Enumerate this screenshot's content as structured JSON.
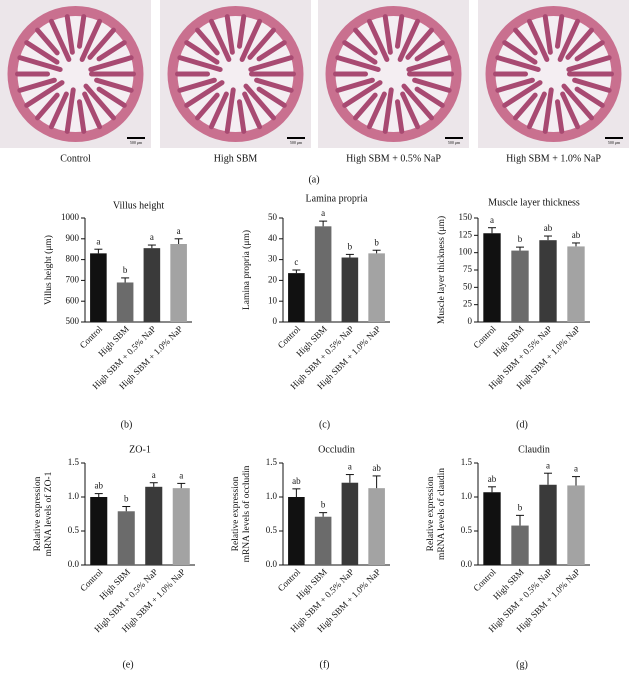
{
  "images": {
    "captions": [
      "Control",
      "High SBM",
      "High SBM + 0.5% NaP",
      "High SBM + 1.0% NaP"
    ],
    "scale_bar": "500 μm",
    "panel_label": "(a)"
  },
  "chart_data": [
    {
      "type": "bar",
      "title": "Villus height",
      "y_label": [
        "Villus height (μm)"
      ],
      "panel_label": "(b)",
      "categories": [
        "Control",
        "High SBM",
        "High SBM + 0.5% NaP",
        "High SBM + 1.0% NaP"
      ],
      "values": [
        830,
        690,
        855,
        875
      ],
      "errors": [
        20,
        22,
        15,
        25
      ],
      "annotations": [
        "a",
        "b",
        "a",
        "a"
      ],
      "colors": [
        "#111111",
        "#6b6b6b",
        "#3a3a3a",
        "#a3a3a3"
      ],
      "ylim": [
        500,
        1000
      ],
      "yticks": [
        500,
        600,
        700,
        800,
        900,
        1000
      ]
    },
    {
      "type": "bar",
      "title": "Lamina propria",
      "y_label": [
        "Lamina propria (μm)"
      ],
      "panel_label": "(c)",
      "categories": [
        "Control",
        "High SBM",
        "High SBM + 0.5% NaP",
        "High SBM + 1.0% NaP"
      ],
      "values": [
        23.5,
        46,
        31,
        33
      ],
      "errors": [
        1.5,
        2.5,
        1.5,
        1.5
      ],
      "annotations": [
        "c",
        "a",
        "b",
        "b"
      ],
      "colors": [
        "#111111",
        "#6b6b6b",
        "#3a3a3a",
        "#a3a3a3"
      ],
      "ylim": [
        0,
        50
      ],
      "yticks": [
        0,
        10,
        20,
        30,
        40,
        50
      ]
    },
    {
      "type": "bar",
      "title": "Muscle layer thickness",
      "y_label": [
        "Muscle layer thickness (μm)"
      ],
      "panel_label": "(d)",
      "categories": [
        "Control",
        "High SBM",
        "High SBM + 0.5% NaP",
        "High SBM + 1.0% NaP"
      ],
      "values": [
        128,
        103,
        118,
        109
      ],
      "errors": [
        8,
        5,
        6,
        5
      ],
      "annotations": [
        "a",
        "b",
        "ab",
        "ab"
      ],
      "colors": [
        "#111111",
        "#6b6b6b",
        "#3a3a3a",
        "#a3a3a3"
      ],
      "ylim": [
        0,
        150
      ],
      "yticks": [
        0,
        25,
        50,
        75,
        100,
        125,
        150
      ]
    },
    {
      "type": "bar",
      "title": "ZO-1",
      "y_label": [
        "Relative expression",
        "mRNA levels of ZO-1"
      ],
      "panel_label": "(e)",
      "categories": [
        "Control",
        "High SBM",
        "High SBM + 0.5% NaP",
        "High SBM + 1.0% NaP"
      ],
      "values": [
        1.0,
        0.79,
        1.15,
        1.13
      ],
      "errors": [
        0.05,
        0.07,
        0.06,
        0.07
      ],
      "annotations": [
        "ab",
        "b",
        "a",
        "a"
      ],
      "colors": [
        "#111111",
        "#6b6b6b",
        "#3a3a3a",
        "#a3a3a3"
      ],
      "ylim": [
        0,
        1.5
      ],
      "yticks": [
        {
          "value": 0,
          "label": "0.0"
        },
        0.5,
        {
          "value": 1,
          "label": "1.0"
        },
        1.5
      ]
    },
    {
      "type": "bar",
      "title": "Occludin",
      "y_label": [
        "Relative expression",
        "mRNA levels of occludin"
      ],
      "panel_label": "(f)",
      "categories": [
        "Control",
        "High SBM",
        "High SBM + 0.5% NaP",
        "High SBM + 1.0% NaP"
      ],
      "values": [
        1.0,
        0.71,
        1.21,
        1.13
      ],
      "errors": [
        0.12,
        0.06,
        0.12,
        0.18
      ],
      "annotations": [
        "ab",
        "b",
        "a",
        "ab"
      ],
      "colors": [
        "#111111",
        "#6b6b6b",
        "#3a3a3a",
        "#a3a3a3"
      ],
      "ylim": [
        0,
        1.5
      ],
      "yticks": [
        {
          "value": 0,
          "label": "0.0"
        },
        0.5,
        {
          "value": 1,
          "label": "1.0"
        },
        1.5
      ]
    },
    {
      "type": "bar",
      "title": "Claudin",
      "y_label": [
        "Relative expression",
        "mRNA levels of claudin"
      ],
      "panel_label": "(g)",
      "categories": [
        "Control",
        "High SBM",
        "High SBM + 0.5% NaP",
        "High SBM + 1.0% NaP"
      ],
      "values": [
        1.07,
        0.58,
        1.18,
        1.17
      ],
      "errors": [
        0.08,
        0.15,
        0.17,
        0.13
      ],
      "annotations": [
        "ab",
        "b",
        "a",
        "a"
      ],
      "colors": [
        "#111111",
        "#6b6b6b",
        "#3a3a3a",
        "#a3a3a3"
      ],
      "ylim": [
        0,
        1.5
      ],
      "yticks": [
        {
          "value": 0,
          "label": "0.0"
        },
        0.5,
        {
          "value": 1,
          "label": "1.0"
        },
        1.5
      ]
    }
  ]
}
